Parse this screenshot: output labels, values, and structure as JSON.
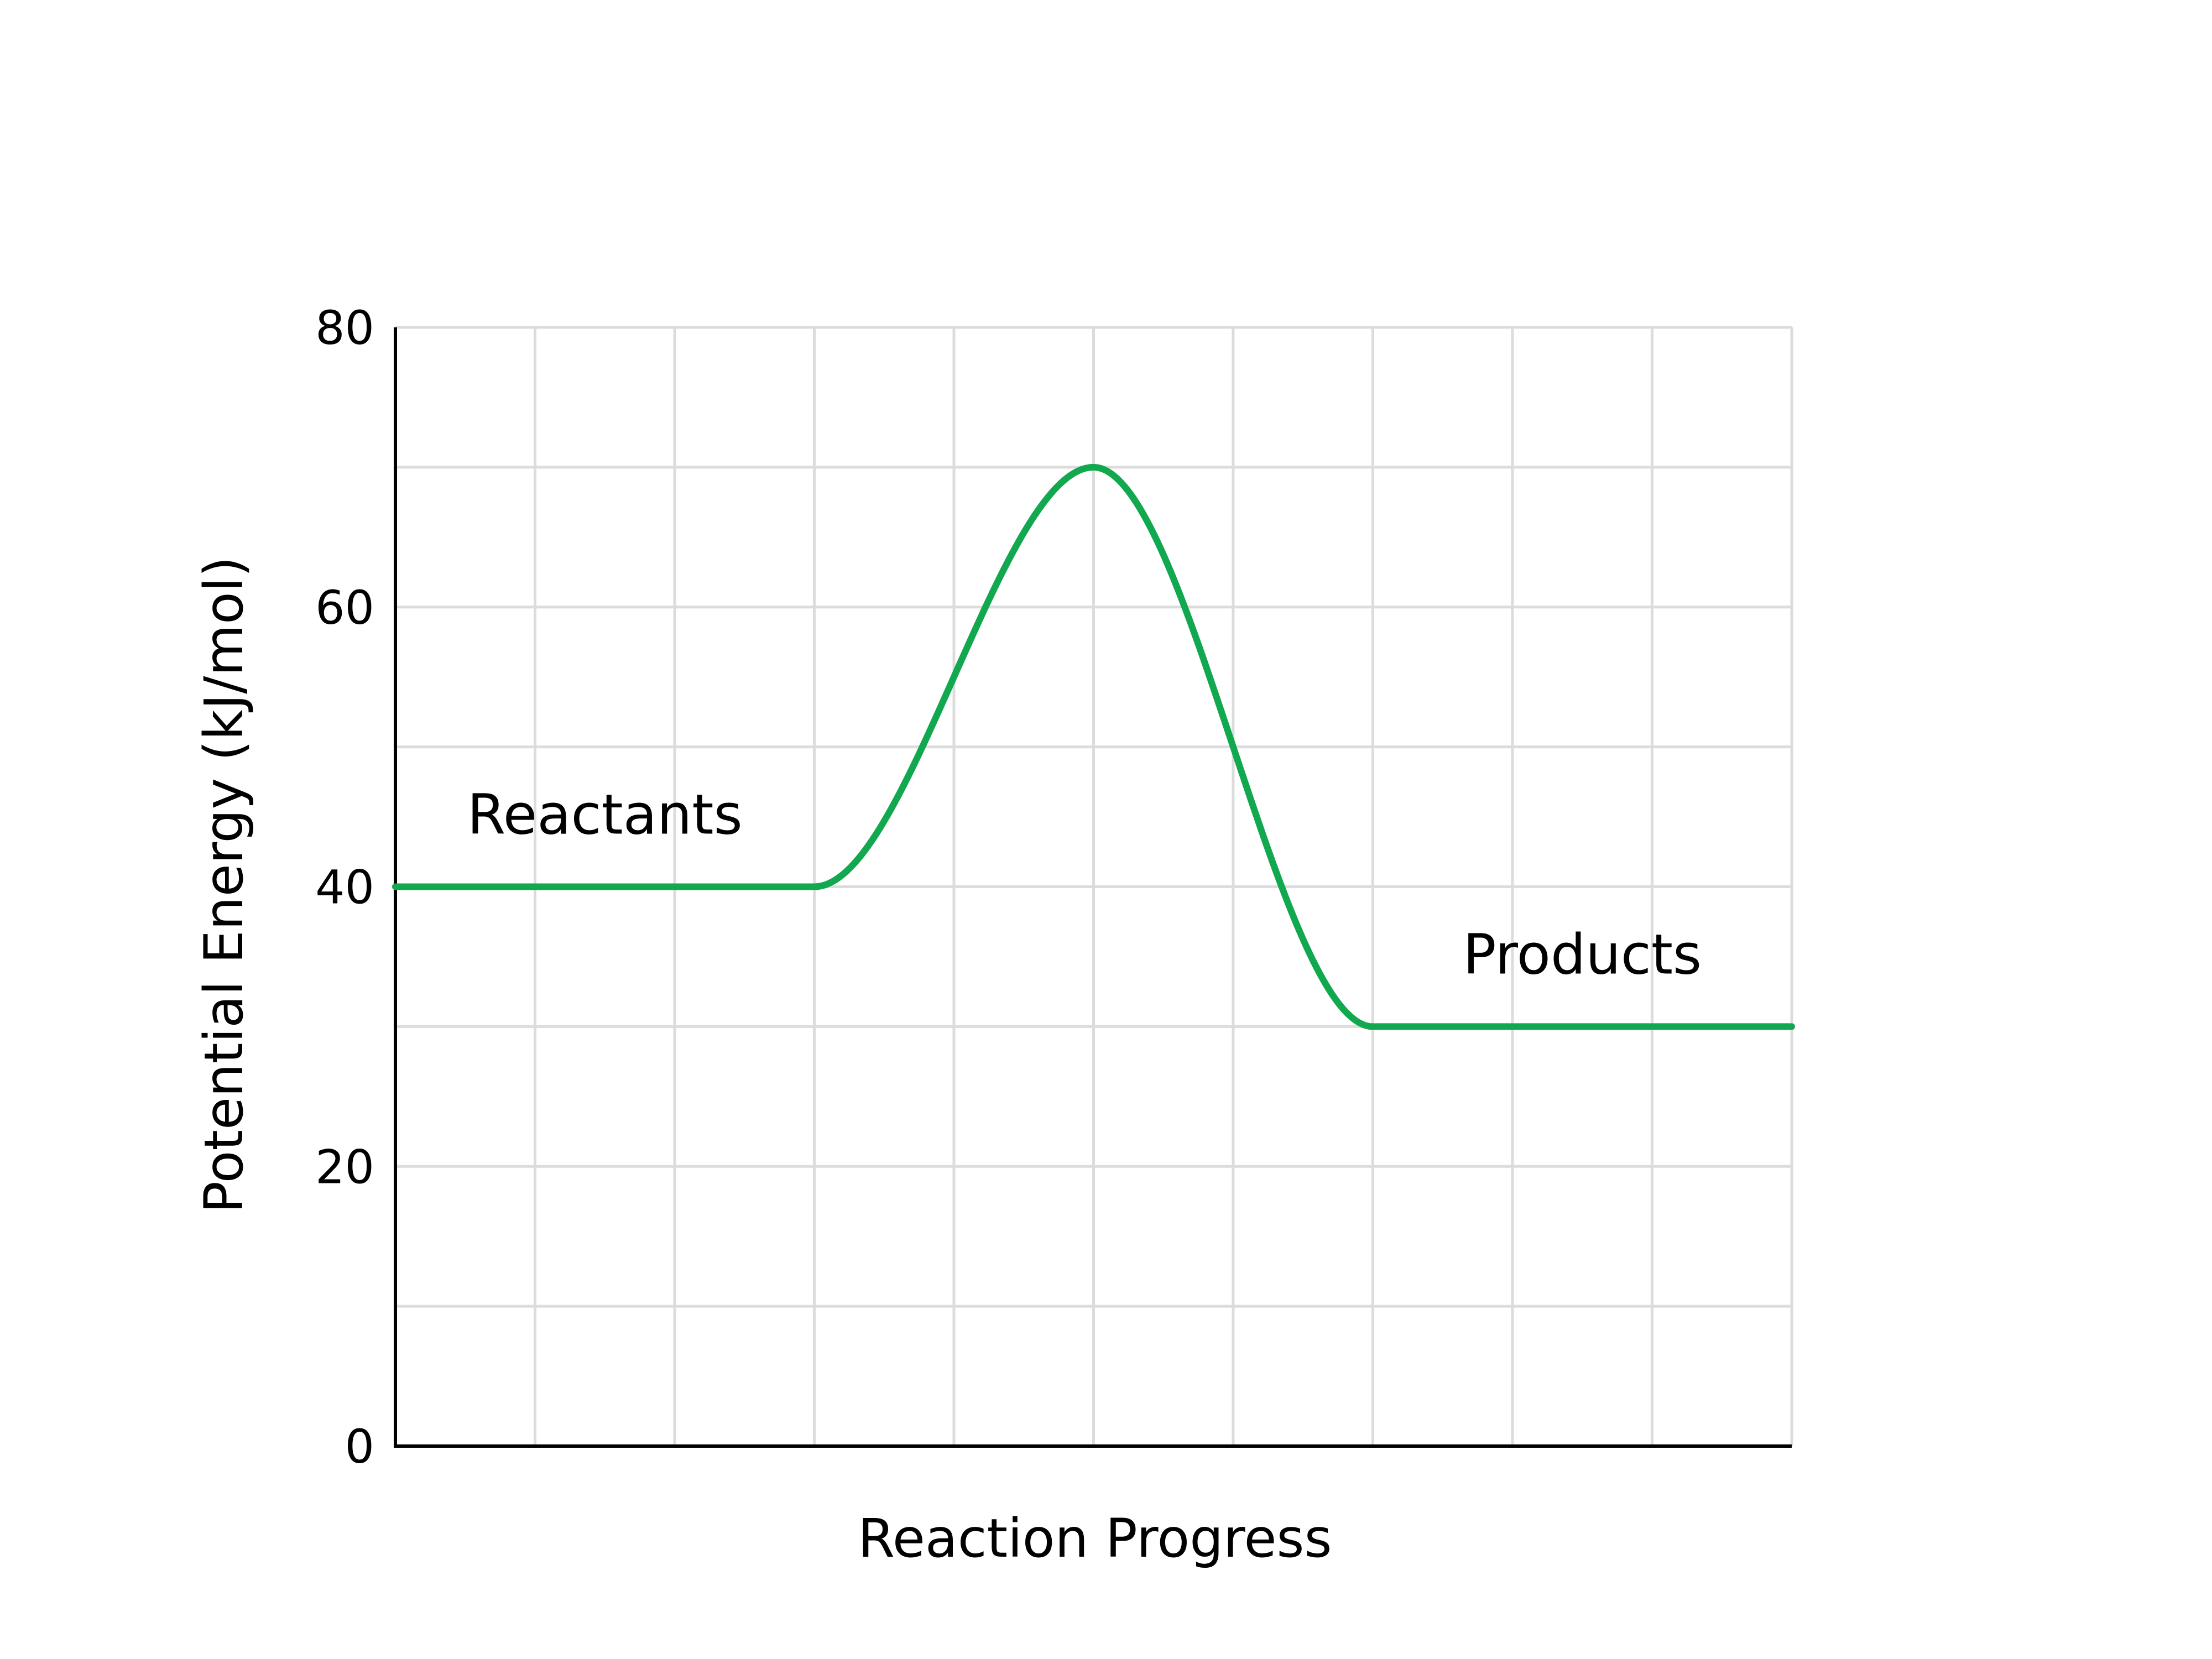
{
  "chart_data": {
    "type": "line",
    "title": "",
    "xlabel": "Reaction Progress",
    "ylabel": "Potential Energy (kJ/mol)",
    "xlim": [
      0,
      10
    ],
    "ylim": [
      0,
      80
    ],
    "yticks": [
      "0",
      "20",
      "40",
      "60",
      "80"
    ],
    "x_grid_lines": 10,
    "y_grid_step": 10,
    "grid": true,
    "series": [
      {
        "points": [
          [
            0,
            40
          ],
          [
            3,
            40
          ],
          [
            5,
            70
          ],
          [
            7,
            30
          ],
          [
            10,
            30
          ]
        ],
        "color": "#12a84f"
      }
    ],
    "annotations": [
      {
        "text": "Reactants",
        "x": 1.5,
        "y": 43.8
      },
      {
        "text": "Products",
        "x": 8.5,
        "y": 33.8
      }
    ]
  }
}
